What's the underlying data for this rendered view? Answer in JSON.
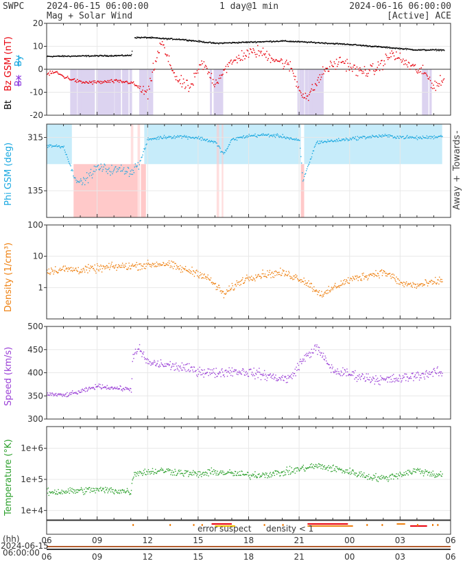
{
  "header": {
    "source": "SWPC",
    "start_time": "2024-06-15 06:00:00",
    "subtitle": "Mag + Solar Wind",
    "cadence": "1 day@1 min",
    "end_time": "2024-06-16 06:00:00",
    "spacecraft": "[Active] ACE"
  },
  "colors": {
    "bt": "#000000",
    "bz": "#e8000b",
    "bx": "#8e3ee0",
    "by": "#19a8e0",
    "phi": "#19a8e0",
    "density": "#ee7f0e",
    "speed": "#9a3fd6",
    "temperature": "#2ca02c",
    "bz_shade": "#dcd3f0",
    "towards_shade": "#c7ecfa",
    "away_shade": "#ffc9c9",
    "grid": "#e8e8e8",
    "error": "#e8000b",
    "suspect": "#f0c000",
    "density_flag": "#ee7f0e"
  },
  "x_axis": {
    "hour_label": "(hh)",
    "date_label": [
      "2024-06-15",
      "06:00:00"
    ],
    "ticks": [
      "06",
      "09",
      "12",
      "15",
      "18",
      "21",
      "00",
      "03",
      "06"
    ]
  },
  "flags": {
    "error": "error",
    "suspect": "suspect",
    "density": "density < 1"
  },
  "chart_data": [
    {
      "type": "scatter",
      "title": "Bt / Bz GSM (nT)",
      "ylabel_bt": "Bt",
      "ylabel_bz": "Bz GSM (nT)",
      "ylabel_bx": "Bx",
      "ylabel_by": "By",
      "ylim": [
        -20,
        20
      ],
      "yticks": [
        "20",
        "10",
        "0",
        "-10",
        "-20"
      ],
      "ytick_values": [
        20,
        10,
        0,
        -10,
        -20
      ],
      "series": [
        {
          "name": "Bt",
          "x": [
            6,
            11,
            11.2,
            12,
            13,
            14,
            16,
            18,
            20,
            22,
            24,
            26,
            27,
            28,
            29.5
          ],
          "y": [
            5.8,
            6.2,
            14,
            14,
            13.5,
            13.2,
            11.5,
            12,
            12.5,
            11.8,
            11,
            9.8,
            9.2,
            8.6,
            8.6
          ]
        },
        {
          "name": "Bz",
          "x": [
            6,
            6.5,
            7,
            8,
            9,
            10,
            11,
            11.5,
            12,
            12.3,
            12.8,
            13.2,
            13.8,
            14.5,
            15.2,
            16,
            16.5,
            17.5,
            18.5,
            19.5,
            20.5,
            21,
            21.5,
            22.5,
            23.5,
            24.5,
            25.5,
            26.5,
            27.5,
            28.5,
            29,
            29.5
          ],
          "y": [
            -2,
            -1,
            -3,
            -5.5,
            -5.5,
            -5,
            -5.5,
            -8,
            -11,
            0,
            12,
            4,
            -5,
            -8,
            3,
            -6,
            0,
            6,
            8,
            5,
            1,
            -9,
            -12,
            0,
            4,
            -1,
            0,
            7,
            2,
            -2,
            -7,
            -5
          ]
        }
      ]
    },
    {
      "type": "scatter",
      "title": "Phi GSM (deg)",
      "ylabel": "Phi GSM (deg)",
      "ylabel_right_towards": "Towards",
      "ylabel_right_away": "Away",
      "ylim": [
        45,
        360
      ],
      "yticks": [
        "315",
        "135"
      ],
      "ytick_values": [
        315,
        135
      ],
      "series": [
        {
          "name": "Phi",
          "x": [
            6,
            7,
            7.5,
            8,
            9,
            10,
            10.5,
            11,
            11.5,
            12,
            13,
            14,
            15,
            16,
            16.5,
            17,
            18,
            19,
            20,
            21,
            21.2,
            22,
            23,
            24,
            25,
            26,
            27,
            28,
            29,
            29.5
          ],
          "y": [
            290,
            285,
            200,
            160,
            215,
            205,
            210,
            200,
            230,
            310,
            318,
            320,
            315,
            300,
            260,
            310,
            322,
            325,
            320,
            305,
            170,
            300,
            305,
            312,
            318,
            322,
            318,
            315,
            318,
            322
          ]
        }
      ]
    },
    {
      "type": "scatter",
      "title": "Density (1/cm3)",
      "ylabel": "Density (1/cm³)",
      "yscale": "log",
      "ylim": [
        0.1,
        100
      ],
      "yticks": [
        "100",
        "10",
        "1"
      ],
      "ytick_values": [
        100,
        10,
        1
      ],
      "series": [
        {
          "name": "Density",
          "x": [
            6,
            7,
            8,
            9,
            10,
            11,
            12,
            13,
            14,
            15,
            16,
            16.5,
            17,
            18,
            19,
            20,
            21,
            22,
            22.5,
            23,
            24,
            25,
            26,
            27,
            28,
            29,
            29.5
          ],
          "y": [
            3.5,
            4,
            3.8,
            4.2,
            4.8,
            5,
            5.5,
            6,
            4,
            3,
            1.2,
            0.6,
            1,
            2.2,
            2.8,
            3,
            2,
            0.8,
            0.6,
            1,
            1.8,
            2.5,
            3.2,
            1.4,
            1.2,
            1.5,
            1.8
          ]
        }
      ]
    },
    {
      "type": "scatter",
      "title": "Speed (km/s)",
      "ylabel": "Speed (km/s)",
      "ylim": [
        300,
        500
      ],
      "yticks": [
        "500",
        "450",
        "400",
        "350",
        "300"
      ],
      "ytick_values": [
        500,
        450,
        400,
        350,
        300
      ],
      "series": [
        {
          "name": "Speed",
          "x": [
            6,
            7,
            8,
            9,
            10,
            11,
            11.1,
            11.5,
            12,
            13,
            14,
            15,
            16,
            17,
            18,
            19,
            20,
            20.5,
            21,
            21.5,
            22,
            22.5,
            23,
            24,
            25,
            26,
            27,
            28,
            29,
            29.5
          ],
          "y": [
            355,
            352,
            360,
            372,
            368,
            365,
            440,
            450,
            422,
            418,
            412,
            405,
            400,
            405,
            402,
            395,
            388,
            390,
            420,
            440,
            455,
            430,
            405,
            398,
            390,
            385,
            388,
            395,
            402,
            400
          ]
        }
      ]
    },
    {
      "type": "scatter",
      "title": "Temperature (°K)",
      "ylabel": "Temperature (°K)",
      "yscale": "log",
      "ylim": [
        5000,
        5000000
      ],
      "yticks": [
        "1e+6",
        "1e+5",
        "1e+4"
      ],
      "ytick_values": [
        1000000,
        100000,
        10000
      ],
      "series": [
        {
          "name": "Temperature",
          "x": [
            6,
            7,
            8,
            9,
            10,
            11,
            11.2,
            12,
            13,
            14,
            15,
            16,
            17,
            18,
            19,
            20,
            21,
            22,
            23,
            24,
            25,
            26,
            27,
            28,
            29,
            29.5
          ],
          "y": [
            40000,
            42000,
            45000,
            48000,
            45000,
            42000,
            170000,
            180000,
            200000,
            170000,
            150000,
            180000,
            160000,
            140000,
            150000,
            170000,
            220000,
            280000,
            230000,
            180000,
            130000,
            110000,
            150000,
            200000,
            150000,
            150000
          ]
        }
      ]
    }
  ]
}
